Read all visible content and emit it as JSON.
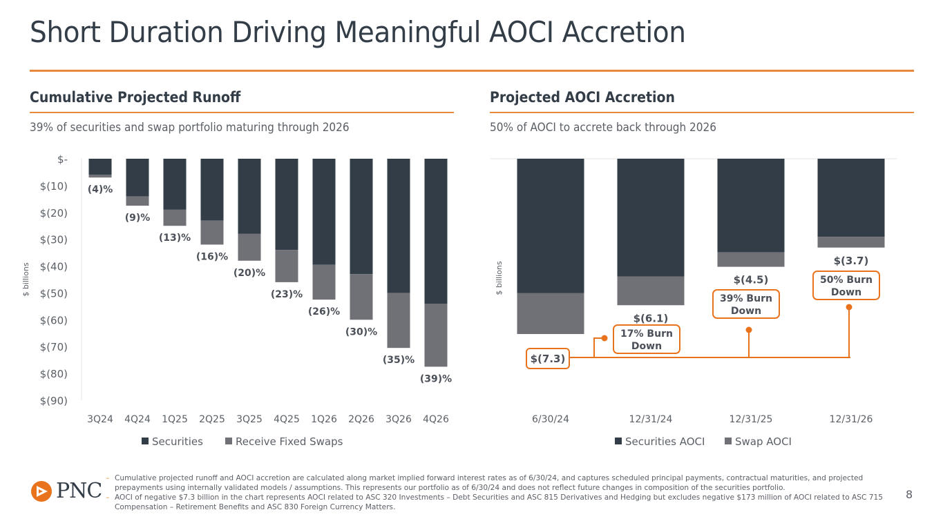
{
  "page": {
    "title": "Short Duration Driving Meaningful AOCI Accretion",
    "page_number": "8",
    "brand_color": "#e8883a",
    "logo_text": "PNC"
  },
  "left_section": {
    "title": "Cumulative Projected Runoff",
    "subtitle": "39% of securities and swap portfolio maturing through 2026"
  },
  "right_section": {
    "title": "Projected AOCI Accretion",
    "subtitle": "50% of AOCI to accrete back through 2026"
  },
  "footnotes": [
    "Cumulative projected runoff and AOCI accretion are calculated along market implied forward interest rates as of 6/30/24, and captures scheduled principal payments, contractual maturities, and projected prepayments using internally validated models / assumptions. This represents our portfolio as of 6/30/24 and does not reflect future changes in composition of the securities portfolio.",
    "AOCI of negative $7.3 billion in the chart represents AOCI related to ASC 320 Investments – Debt Securities and ASC 815 Derivatives and Hedging but excludes negative $173 million of AOCI related to ASC 715 Compensation – Retirement Benefits and ASC 830 Foreign Currency Matters."
  ],
  "chart_data": [
    {
      "type": "bar",
      "stacked": true,
      "title": "Cumulative Projected Runoff",
      "xlabel": "",
      "ylabel": "$ billions",
      "ylim": [
        -90,
        0
      ],
      "yticks": [
        0,
        -10,
        -20,
        -30,
        -40,
        -50,
        -60,
        -70,
        -80,
        -90
      ],
      "ytick_labels": [
        "$-",
        "$(10)",
        "$(20)",
        "$(30)",
        "$(40)",
        "$(50)",
        "$(60)",
        "$(70)",
        "$(80)",
        "$(90)"
      ],
      "categories": [
        "3Q24",
        "4Q24",
        "1Q25",
        "2Q25",
        "3Q25",
        "4Q25",
        "1Q26",
        "2Q26",
        "3Q26",
        "4Q26"
      ],
      "series": [
        {
          "name": "Securities",
          "color": "#333d47",
          "values": [
            -6,
            -14,
            -19,
            -23,
            -28,
            -34,
            -39.5,
            -43,
            -50,
            -54
          ]
        },
        {
          "name": "Receive Fixed Swaps",
          "color": "#707177",
          "values": [
            -1,
            -3.5,
            -6,
            -9,
            -10,
            -12,
            -13,
            -17,
            -20.5,
            -23.5
          ]
        }
      ],
      "data_labels": [
        "(4)%",
        "(9)%",
        "(13)%",
        "(16)%",
        "(20)%",
        "(23)%",
        "(26)%",
        "(30)%",
        "(35)%",
        "(39)%"
      ],
      "legend": "bottom",
      "grid": false
    },
    {
      "type": "bar",
      "stacked": true,
      "title": "Projected AOCI Accretion",
      "xlabel": "",
      "ylabel": "$ billions",
      "ylim": [
        -7.6,
        0
      ],
      "categories": [
        "6/30/24",
        "12/31/24",
        "12/31/25",
        "12/31/26"
      ],
      "series": [
        {
          "name": "Securities AOCI",
          "color": "#333d47",
          "values": [
            -5.6,
            -4.9,
            -3.9,
            -3.25
          ]
        },
        {
          "name": "Swap AOCI",
          "color": "#707177",
          "values": [
            -1.7,
            -1.2,
            -0.6,
            -0.45
          ]
        }
      ],
      "totals": [
        -7.3,
        -6.1,
        -4.5,
        -3.7
      ],
      "total_labels": [
        "$(7.3)",
        "$(6.1)",
        "$(4.5)",
        "$(3.7)"
      ],
      "annotations": [
        {
          "category": "12/31/24",
          "text_line1": "17% Burn",
          "text_line2": "Down"
        },
        {
          "category": "12/31/25",
          "text_line1": "39% Burn",
          "text_line2": "Down"
        },
        {
          "category": "12/31/26",
          "text_line1": "50% Burn",
          "text_line2": "Down"
        }
      ],
      "legend": "bottom",
      "grid": false
    }
  ]
}
